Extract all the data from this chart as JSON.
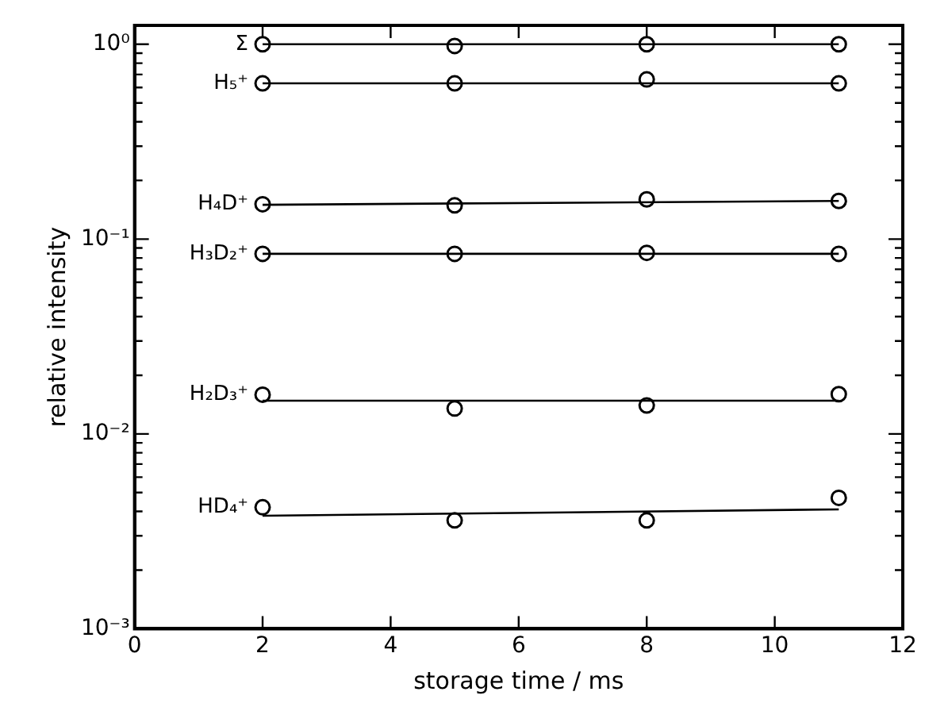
{
  "chart_data": {
    "type": "scatter",
    "xlabel": "storage time / ms",
    "ylabel": "relative intensity",
    "log": "y",
    "grid": false,
    "legend": "left",
    "marker": "circle",
    "xlim": [
      0,
      12
    ],
    "xticks": [
      0,
      2,
      4,
      6,
      8,
      10,
      12
    ],
    "ylim": [
      0.001,
      1.25
    ],
    "yticks": [
      {
        "value": 0.001,
        "label": "10⁻³"
      },
      {
        "value": 0.002,
        "label": null
      },
      {
        "value": 0.003,
        "label": null
      },
      {
        "value": 0.004,
        "label": null
      },
      {
        "value": 0.005,
        "label": null
      },
      {
        "value": 0.006,
        "label": null
      },
      {
        "value": 0.007,
        "label": null
      },
      {
        "value": 0.008,
        "label": null
      },
      {
        "value": 0.009,
        "label": null
      },
      {
        "value": 0.01,
        "label": "10⁻²"
      },
      {
        "value": 0.02,
        "label": null
      },
      {
        "value": 0.03,
        "label": null
      },
      {
        "value": 0.04,
        "label": null
      },
      {
        "value": 0.05,
        "label": null
      },
      {
        "value": 0.06,
        "label": null
      },
      {
        "value": 0.07,
        "label": null
      },
      {
        "value": 0.08,
        "label": null
      },
      {
        "value": 0.09,
        "label": null
      },
      {
        "value": 0.1,
        "label": "10⁻¹"
      },
      {
        "value": 0.2,
        "label": null
      },
      {
        "value": 0.3,
        "label": null
      },
      {
        "value": 0.4,
        "label": null
      },
      {
        "value": 0.5,
        "label": null
      },
      {
        "value": 0.6,
        "label": null
      },
      {
        "value": 0.7,
        "label": null
      },
      {
        "value": 0.8,
        "label": null
      },
      {
        "value": 0.9,
        "label": null
      },
      {
        "value": 1,
        "label": "10⁰"
      }
    ],
    "series": [
      {
        "name": "Σ",
        "color": "#000000",
        "x": [
          2,
          5,
          8,
          11
        ],
        "values": [
          1.0,
          0.98,
          1.0,
          1.0
        ]
      },
      {
        "name": "H₅⁺",
        "color": "#000000",
        "x": [
          2,
          5,
          8,
          11
        ],
        "values": [
          0.63,
          0.63,
          0.66,
          0.63
        ]
      },
      {
        "name": "H₄D⁺",
        "color": "#000000",
        "x": [
          2,
          5,
          8,
          11
        ],
        "values": [
          0.151,
          0.149,
          0.16,
          0.157
        ]
      },
      {
        "name": "H₃D₂⁺",
        "color": "#000000",
        "x": [
          2,
          5,
          8,
          11
        ],
        "values": [
          0.084,
          0.084,
          0.085,
          0.084
        ]
      },
      {
        "name": "H₂D₃⁺",
        "color": "#000000",
        "x": [
          2,
          5,
          8,
          11
        ],
        "values": [
          0.0159,
          0.0135,
          0.014,
          0.016
        ]
      },
      {
        "name": "HD₄⁺",
        "color": "#000000",
        "x": [
          2,
          5,
          8,
          11
        ],
        "values": [
          0.0042,
          0.0036,
          0.0036,
          0.0047
        ]
      },
      {
        "type": "line",
        "marker": "none",
        "color": "#000000",
        "x": [
          2,
          11
        ],
        "values": [
          1.0,
          1.0
        ]
      },
      {
        "type": "line",
        "marker": "none",
        "color": "#000000",
        "x": [
          2,
          11
        ],
        "values": [
          0.63,
          0.63
        ]
      },
      {
        "type": "line",
        "marker": "none",
        "color": "#000000",
        "x": [
          2,
          11
        ],
        "values": [
          0.15,
          0.157
        ]
      },
      {
        "type": "line",
        "marker": "none",
        "color": "#000000",
        "x": [
          2,
          11
        ],
        "values": [
          0.084,
          0.084
        ]
      },
      {
        "type": "line",
        "marker": "none",
        "color": "#000000",
        "x": [
          2,
          11
        ],
        "values": [
          0.0148,
          0.0148
        ]
      },
      {
        "type": "line",
        "marker": "none",
        "color": "#000000",
        "x": [
          2,
          11
        ],
        "values": [
          0.0038,
          0.0041
        ]
      }
    ]
  }
}
